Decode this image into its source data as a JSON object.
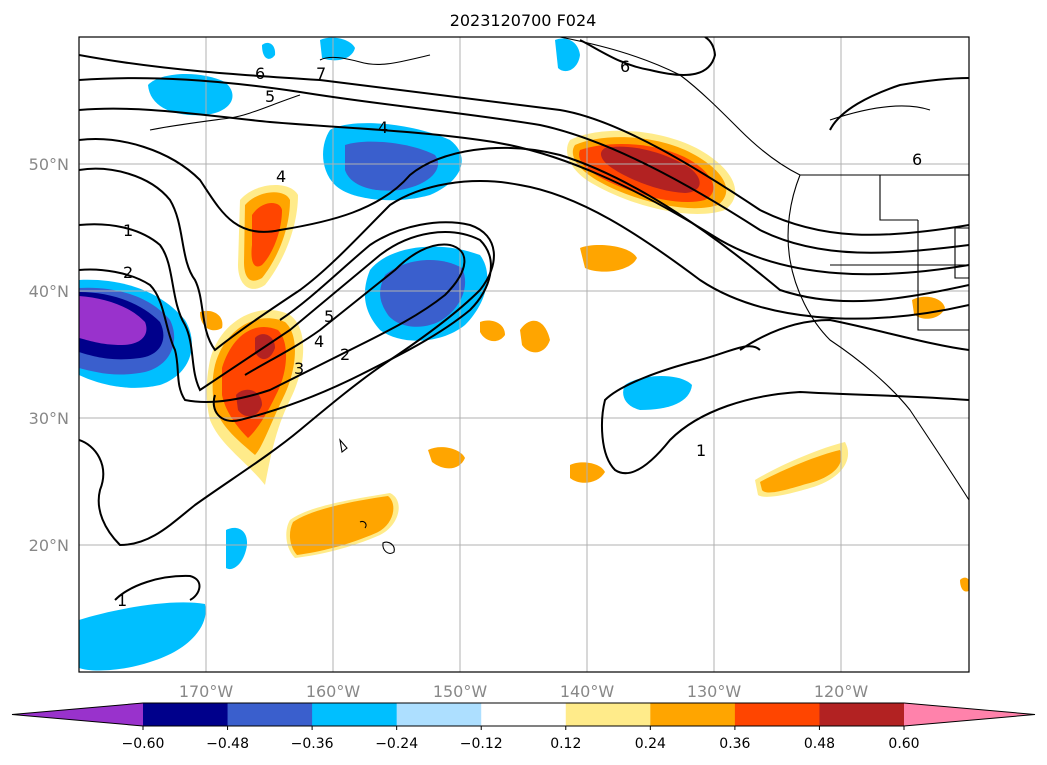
{
  "title": "2023120700 F024",
  "map": {
    "lon_range": [
      -180,
      -110
    ],
    "lat_range": [
      10,
      60
    ],
    "lat_ticks": [
      {
        "value": 20,
        "label": "20°N"
      },
      {
        "value": 30,
        "label": "30°N"
      },
      {
        "value": 40,
        "label": "40°N"
      },
      {
        "value": 50,
        "label": "50°N"
      }
    ],
    "lon_ticks": [
      {
        "value": -170,
        "label": "170°W"
      },
      {
        "value": -160,
        "label": "160°W"
      },
      {
        "value": -150,
        "label": "150°W"
      },
      {
        "value": -140,
        "label": "140°W"
      },
      {
        "value": -130,
        "label": "130°W"
      },
      {
        "value": -120,
        "label": "120°W"
      }
    ],
    "grid": true
  },
  "colorbar": {
    "colors": [
      "#9932CC",
      "#00008B",
      "#3A5FCD",
      "#00BFFF",
      "#ADDFFF",
      "#FFFFFF",
      "#FFEB8A",
      "#FFA500",
      "#FF4500",
      "#B22222",
      "#FF82AB"
    ],
    "extend": "both",
    "tick_labels": [
      "−0.60",
      "−0.48",
      "−0.36",
      "−0.24",
      "−0.12",
      "0.12",
      "0.24",
      "0.36",
      "0.48",
      "0.60"
    ]
  },
  "contour_labels": [
    {
      "text": "6"
    },
    {
      "text": "7"
    },
    {
      "text": "5"
    },
    {
      "text": "4"
    },
    {
      "text": "6"
    },
    {
      "text": "6"
    },
    {
      "text": "4"
    },
    {
      "text": "1"
    },
    {
      "text": "2"
    },
    {
      "text": "5"
    },
    {
      "text": "4"
    },
    {
      "text": "2"
    },
    {
      "text": "3"
    },
    {
      "text": "1"
    },
    {
      "text": "1"
    }
  ]
}
